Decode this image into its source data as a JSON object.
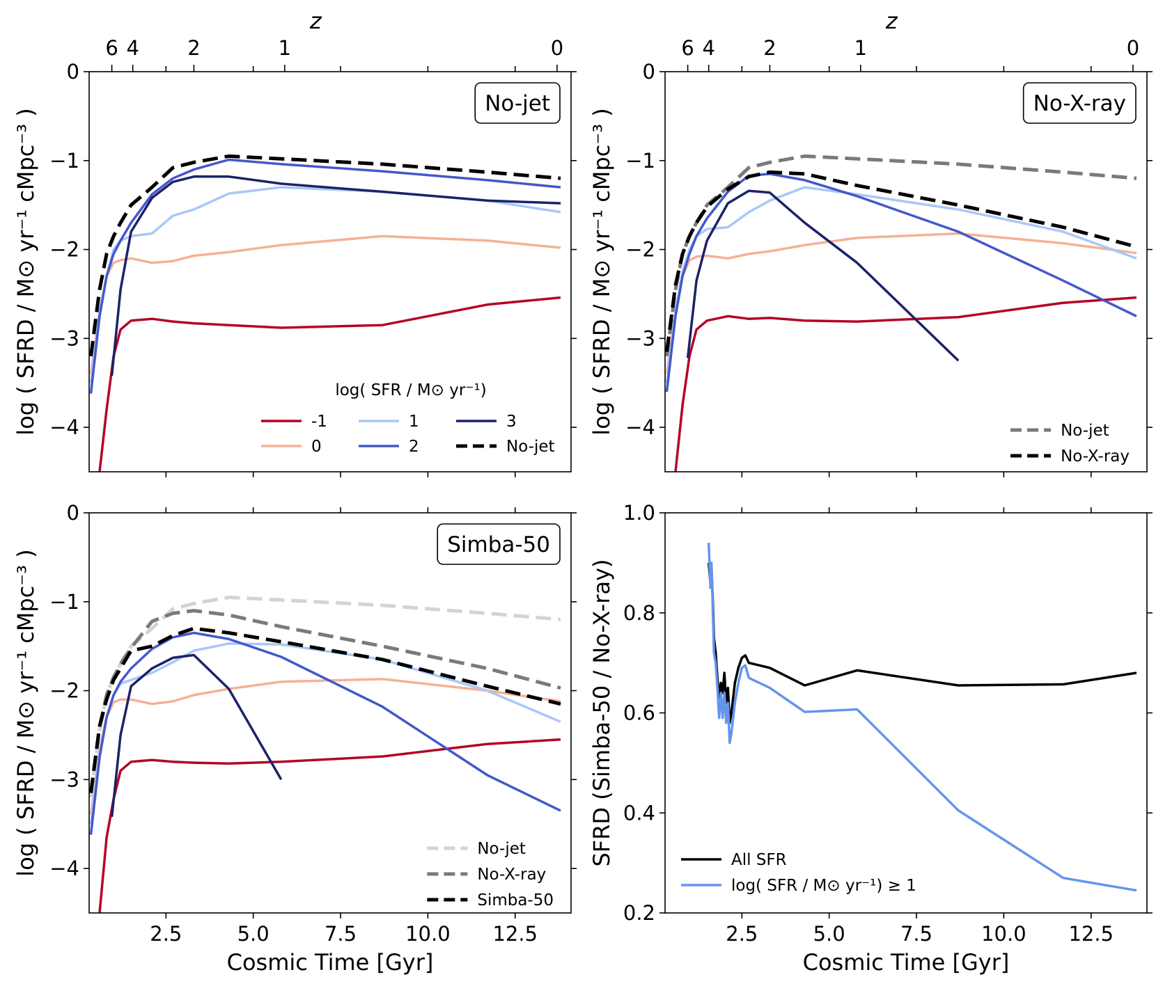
{
  "colors": {
    "m1": "#b40426",
    "p0": "#f5b194",
    "p1": "#a9c7f7",
    "p2": "#4358cb",
    "p3": "#1c2268",
    "black": "#000000",
    "gray": "#7a7a7a",
    "lightgray": "#d3d3d3",
    "ratio_sfr": "#6495ed"
  },
  "chart_data": [
    {
      "type": "line",
      "panel": "top-left",
      "box_label": "No-jet",
      "xlabel": "Cosmic Time [Gyr]",
      "ylabel": "log ( SFRD / M⊙ yr⁻¹ cMpc⁻³ )",
      "xlim": [
        0.3,
        14.1
      ],
      "ylim": [
        -4.5,
        0
      ],
      "yticks": [
        0,
        -1,
        -2,
        -3,
        -4
      ],
      "ytick_labels": [
        "0",
        "−1",
        "−2",
        "−3",
        "−4"
      ],
      "xticks": [
        2.5,
        5.0,
        7.5,
        10.0,
        12.5
      ],
      "top_axis": {
        "title": "z",
        "ticks": [
          6,
          4,
          2,
          1,
          0
        ],
        "tick_labels": [
          "6",
          "4",
          "2",
          "1",
          "0"
        ],
        "tick_times": [
          0.95,
          1.55,
          3.3,
          5.9,
          13.7
        ]
      },
      "legend": {
        "title": "log( SFR / M⊙ yr⁻¹)",
        "loc": "lower right",
        "ncol": 3
      },
      "series": [
        {
          "name": "-1",
          "color_key": "m1",
          "dash": "solid",
          "x": [
            0.6,
            0.8,
            1.0,
            1.2,
            1.5,
            2.1,
            2.7,
            3.3,
            4.3,
            5.8,
            8.7,
            11.7,
            13.8
          ],
          "y": [
            -4.5,
            -3.8,
            -3.2,
            -2.9,
            -2.8,
            -2.78,
            -2.81,
            -2.83,
            -2.85,
            -2.88,
            -2.85,
            -2.62,
            -2.54
          ]
        },
        {
          "name": "0",
          "color_key": "p0",
          "dash": "solid",
          "x": [
            0.35,
            0.6,
            0.8,
            1.0,
            1.2,
            1.5,
            2.1,
            2.7,
            3.3,
            4.3,
            5.8,
            8.7,
            11.7,
            13.8
          ],
          "y": [
            -3.4,
            -2.7,
            -2.3,
            -2.15,
            -2.12,
            -2.1,
            -2.15,
            -2.13,
            -2.07,
            -2.03,
            -1.95,
            -1.85,
            -1.9,
            -1.98
          ]
        },
        {
          "name": "1",
          "color_key": "p1",
          "dash": "solid",
          "x": [
            0.35,
            0.6,
            0.8,
            1.0,
            1.2,
            1.5,
            2.1,
            2.7,
            3.3,
            4.3,
            5.8,
            8.7,
            11.7,
            13.8
          ],
          "y": [
            -3.5,
            -2.7,
            -2.3,
            -2.0,
            -1.9,
            -1.85,
            -1.82,
            -1.62,
            -1.55,
            -1.37,
            -1.3,
            -1.35,
            -1.45,
            -1.58
          ]
        },
        {
          "name": "2",
          "color_key": "p2",
          "dash": "solid",
          "x": [
            0.35,
            0.6,
            0.8,
            1.0,
            1.2,
            1.5,
            2.1,
            2.7,
            3.3,
            4.3,
            5.8,
            8.7,
            11.7,
            13.8
          ],
          "y": [
            -3.62,
            -2.75,
            -2.3,
            -2.05,
            -1.9,
            -1.7,
            -1.38,
            -1.2,
            -1.1,
            -0.99,
            -1.04,
            -1.12,
            -1.22,
            -1.3
          ]
        },
        {
          "name": "3",
          "color_key": "p3",
          "dash": "solid",
          "x": [
            0.95,
            1.2,
            1.5,
            2.1,
            2.7,
            3.3,
            4.3,
            5.8,
            8.7,
            11.7,
            13.8
          ],
          "y": [
            -3.42,
            -2.45,
            -1.8,
            -1.42,
            -1.24,
            -1.18,
            -1.18,
            -1.26,
            -1.35,
            -1.45,
            -1.48
          ]
        },
        {
          "name": "No-jet",
          "color_key": "black",
          "dash": "dashed",
          "x": [
            0.35,
            0.6,
            0.8,
            1.0,
            1.2,
            1.5,
            2.1,
            2.7,
            3.3,
            4.3,
            5.8,
            8.7,
            11.7,
            13.8
          ],
          "y": [
            -3.2,
            -2.45,
            -2.05,
            -1.85,
            -1.7,
            -1.5,
            -1.3,
            -1.08,
            -1.02,
            -0.95,
            -0.98,
            -1.04,
            -1.13,
            -1.2
          ]
        }
      ]
    },
    {
      "type": "line",
      "panel": "top-right",
      "box_label": "No-X-ray",
      "xlabel": "Cosmic Time [Gyr]",
      "ylabel": "log ( SFRD / M⊙ yr⁻¹ cMpc⁻³ )",
      "xlim": [
        0.3,
        14.1
      ],
      "ylim": [
        -4.5,
        0
      ],
      "yticks": [
        0,
        -1,
        -2,
        -3,
        -4
      ],
      "ytick_labels": [
        "0",
        "−1",
        "−2",
        "−3",
        "−4"
      ],
      "xticks": [
        2.5,
        5.0,
        7.5,
        10.0,
        12.5
      ],
      "top_axis": {
        "title": "z",
        "ticks": [
          6,
          4,
          2,
          1,
          0
        ],
        "tick_labels": [
          "6",
          "4",
          "2",
          "1",
          "0"
        ],
        "tick_times": [
          0.95,
          1.55,
          3.3,
          5.9,
          13.7
        ]
      },
      "legend": {
        "loc": "lower right",
        "ncol": 1
      },
      "series": [
        {
          "name": "-1",
          "color_key": "m1",
          "dash": "solid",
          "legend": false,
          "x": [
            0.6,
            0.8,
            1.0,
            1.2,
            1.5,
            2.1,
            2.7,
            3.3,
            4.3,
            5.8,
            8.7,
            11.7,
            13.8
          ],
          "y": [
            -4.5,
            -3.75,
            -3.2,
            -2.9,
            -2.8,
            -2.75,
            -2.78,
            -2.77,
            -2.8,
            -2.81,
            -2.76,
            -2.6,
            -2.54
          ]
        },
        {
          "name": "0",
          "color_key": "p0",
          "dash": "solid",
          "legend": false,
          "x": [
            0.35,
            0.6,
            0.8,
            1.0,
            1.2,
            1.5,
            2.1,
            2.7,
            3.3,
            4.3,
            5.8,
            8.7,
            11.7,
            13.8
          ],
          "y": [
            -3.4,
            -2.7,
            -2.3,
            -2.12,
            -2.08,
            -2.07,
            -2.1,
            -2.05,
            -2.02,
            -1.95,
            -1.87,
            -1.82,
            -1.93,
            -2.04
          ]
        },
        {
          "name": "1",
          "color_key": "p1",
          "dash": "solid",
          "legend": false,
          "x": [
            0.35,
            0.6,
            0.8,
            1.0,
            1.2,
            1.5,
            2.1,
            2.7,
            3.3,
            4.3,
            5.8,
            8.7,
            11.7,
            13.8
          ],
          "y": [
            -3.5,
            -2.7,
            -2.25,
            -2.0,
            -1.85,
            -1.77,
            -1.75,
            -1.58,
            -1.45,
            -1.3,
            -1.38,
            -1.55,
            -1.8,
            -2.1
          ]
        },
        {
          "name": "2",
          "color_key": "p2",
          "dash": "solid",
          "legend": false,
          "x": [
            0.35,
            0.6,
            0.8,
            1.0,
            1.2,
            1.5,
            2.1,
            2.7,
            3.3,
            4.3,
            5.8,
            8.7,
            11.7,
            13.8
          ],
          "y": [
            -3.6,
            -2.75,
            -2.3,
            -2.05,
            -1.85,
            -1.65,
            -1.35,
            -1.17,
            -1.15,
            -1.22,
            -1.4,
            -1.8,
            -2.35,
            -2.75
          ]
        },
        {
          "name": "3",
          "color_key": "p3",
          "dash": "solid",
          "legend": false,
          "x": [
            0.95,
            1.2,
            1.5,
            2.1,
            2.7,
            3.3,
            4.3,
            5.8,
            8.7
          ],
          "y": [
            -3.22,
            -2.35,
            -1.9,
            -1.48,
            -1.34,
            -1.36,
            -1.7,
            -2.15,
            -3.25
          ]
        },
        {
          "name": "No-jet",
          "color_key": "gray",
          "dash": "dashed",
          "x": [
            0.35,
            0.6,
            0.8,
            1.0,
            1.2,
            1.5,
            2.1,
            2.7,
            3.3,
            4.3,
            5.8,
            8.7,
            11.7,
            13.8
          ],
          "y": [
            -3.2,
            -2.45,
            -2.05,
            -1.85,
            -1.7,
            -1.5,
            -1.3,
            -1.08,
            -1.02,
            -0.95,
            -0.98,
            -1.04,
            -1.13,
            -1.2
          ]
        },
        {
          "name": "No-X-ray",
          "color_key": "black",
          "dash": "dashed",
          "x": [
            0.35,
            0.6,
            0.8,
            1.0,
            1.2,
            1.5,
            2.1,
            2.7,
            3.3,
            4.3,
            5.8,
            8.7,
            11.7,
            13.8
          ],
          "y": [
            -3.15,
            -2.4,
            -2.05,
            -1.85,
            -1.7,
            -1.52,
            -1.32,
            -1.18,
            -1.13,
            -1.15,
            -1.28,
            -1.5,
            -1.75,
            -1.97
          ]
        }
      ]
    },
    {
      "type": "line",
      "panel": "bottom-left",
      "box_label": "Simba-50",
      "xlabel": "Cosmic Time [Gyr]",
      "ylabel": "log ( SFRD / M⊙ yr⁻¹ cMpc⁻³ )",
      "xlim": [
        0.3,
        14.1
      ],
      "ylim": [
        -4.5,
        0
      ],
      "yticks": [
        0,
        -1,
        -2,
        -3,
        -4
      ],
      "ytick_labels": [
        "0",
        "−1",
        "−2",
        "−3",
        "−4"
      ],
      "xticks": [
        2.5,
        5.0,
        7.5,
        10.0,
        12.5
      ],
      "xtick_labels": [
        "2.5",
        "5.0",
        "7.5",
        "10.0",
        "12.5"
      ],
      "legend": {
        "loc": "lower right",
        "ncol": 1
      },
      "series": [
        {
          "name": "-1",
          "color_key": "m1",
          "dash": "solid",
          "legend": false,
          "x": [
            0.6,
            0.8,
            1.0,
            1.2,
            1.5,
            2.1,
            2.7,
            3.3,
            4.3,
            5.8,
            8.7,
            11.7,
            13.8
          ],
          "y": [
            -4.5,
            -3.65,
            -3.22,
            -2.9,
            -2.8,
            -2.78,
            -2.8,
            -2.81,
            -2.82,
            -2.8,
            -2.74,
            -2.6,
            -2.55
          ]
        },
        {
          "name": "0",
          "color_key": "p0",
          "dash": "solid",
          "legend": false,
          "x": [
            0.35,
            0.6,
            0.8,
            1.0,
            1.2,
            1.5,
            2.1,
            2.7,
            3.3,
            4.3,
            5.8,
            8.7,
            11.7,
            13.8
          ],
          "y": [
            -3.4,
            -2.65,
            -2.3,
            -2.13,
            -2.1,
            -2.1,
            -2.15,
            -2.12,
            -2.05,
            -1.98,
            -1.9,
            -1.87,
            -2.0,
            -2.12
          ]
        },
        {
          "name": "1",
          "color_key": "p1",
          "dash": "solid",
          "legend": false,
          "x": [
            0.35,
            0.6,
            0.8,
            1.0,
            1.2,
            1.5,
            2.1,
            2.7,
            3.3,
            4.3,
            5.8,
            8.7,
            11.7,
            13.8
          ],
          "y": [
            -3.5,
            -2.7,
            -2.3,
            -2.05,
            -1.92,
            -1.88,
            -1.8,
            -1.68,
            -1.55,
            -1.47,
            -1.48,
            -1.65,
            -2.0,
            -2.35
          ]
        },
        {
          "name": "2",
          "color_key": "p2",
          "dash": "solid",
          "legend": false,
          "x": [
            0.35,
            0.6,
            0.8,
            1.0,
            1.2,
            1.5,
            2.1,
            2.7,
            3.3,
            4.3,
            5.8,
            8.7,
            11.7,
            13.8
          ],
          "y": [
            -3.62,
            -2.75,
            -2.3,
            -2.05,
            -1.9,
            -1.75,
            -1.53,
            -1.4,
            -1.35,
            -1.42,
            -1.62,
            -2.18,
            -2.95,
            -3.35
          ]
        },
        {
          "name": "3",
          "color_key": "p3",
          "dash": "solid",
          "legend": false,
          "x": [
            0.95,
            1.2,
            1.5,
            2.1,
            2.7,
            3.3,
            4.3,
            5.8
          ],
          "y": [
            -3.42,
            -2.5,
            -1.95,
            -1.75,
            -1.63,
            -1.6,
            -1.98,
            -3.0
          ]
        },
        {
          "name": "No-jet",
          "color_key": "lightgray",
          "dash": "dashed",
          "x": [
            0.35,
            0.6,
            0.8,
            1.0,
            1.2,
            1.5,
            2.1,
            2.7,
            3.3,
            4.3,
            5.8,
            8.7,
            11.7,
            13.8
          ],
          "y": [
            -3.2,
            -2.45,
            -2.05,
            -1.85,
            -1.7,
            -1.5,
            -1.3,
            -1.08,
            -1.02,
            -0.95,
            -0.98,
            -1.04,
            -1.13,
            -1.2
          ]
        },
        {
          "name": "No-X-ray",
          "color_key": "gray",
          "dash": "dashed",
          "x": [
            0.35,
            0.6,
            0.8,
            1.0,
            1.2,
            1.5,
            2.1,
            2.7,
            3.3,
            4.3,
            5.8,
            8.7,
            11.7,
            13.8
          ],
          "y": [
            -3.15,
            -2.4,
            -2.05,
            -1.85,
            -1.7,
            -1.52,
            -1.22,
            -1.13,
            -1.1,
            -1.15,
            -1.28,
            -1.5,
            -1.75,
            -1.97
          ]
        },
        {
          "name": "Simba-50",
          "color_key": "black",
          "dash": "dashed",
          "x": [
            0.35,
            0.6,
            0.8,
            1.0,
            1.2,
            1.5,
            2.1,
            2.7,
            3.3,
            4.3,
            5.8,
            8.7,
            11.7,
            13.8
          ],
          "y": [
            -3.15,
            -2.4,
            -2.1,
            -1.88,
            -1.75,
            -1.55,
            -1.5,
            -1.38,
            -1.3,
            -1.35,
            -1.45,
            -1.65,
            -1.95,
            -2.15
          ]
        }
      ]
    },
    {
      "type": "line",
      "panel": "bottom-right",
      "xlabel": "Cosmic Time [Gyr]",
      "ylabel": "SFRD (Simba-50 / No-X-ray)",
      "xlim": [
        0.3,
        14.1
      ],
      "ylim": [
        0.2,
        1.0
      ],
      "yticks": [
        1.0,
        0.8,
        0.6,
        0.4,
        0.2
      ],
      "ytick_labels": [
        "1.0",
        "0.8",
        "0.6",
        "0.4",
        "0.2"
      ],
      "xticks": [
        2.5,
        5.0,
        7.5,
        10.0,
        12.5
      ],
      "xtick_labels": [
        "2.5",
        "5.0",
        "7.5",
        "10.0",
        "12.5"
      ],
      "legend": {
        "loc": "lower left",
        "ncol": 1
      },
      "series": [
        {
          "name": "All SFR",
          "color_key": "black",
          "dash": "solid",
          "x": [
            1.55,
            1.6,
            1.63,
            1.67,
            1.7,
            1.75,
            1.8,
            1.85,
            1.9,
            1.95,
            2.0,
            2.05,
            2.1,
            2.15,
            2.2,
            2.3,
            2.4,
            2.5,
            2.6,
            2.7,
            3.3,
            4.3,
            5.8,
            8.7,
            11.7,
            13.8
          ],
          "y": [
            0.9,
            0.86,
            0.89,
            0.82,
            0.75,
            0.72,
            0.67,
            0.63,
            0.66,
            0.64,
            0.68,
            0.62,
            0.65,
            0.58,
            0.6,
            0.66,
            0.69,
            0.71,
            0.715,
            0.7,
            0.69,
            0.655,
            0.685,
            0.655,
            0.657,
            0.68
          ]
        },
        {
          "name": "log( SFR / M⊙ yr⁻¹) ≥ 1",
          "color_key": "ratio_sfr",
          "dash": "solid",
          "x": [
            1.55,
            1.6,
            1.63,
            1.67,
            1.7,
            1.75,
            1.8,
            1.85,
            1.9,
            1.95,
            2.0,
            2.05,
            2.1,
            2.15,
            2.2,
            2.3,
            2.4,
            2.5,
            2.6,
            2.7,
            3.3,
            4.3,
            5.8,
            8.7,
            11.7,
            13.8
          ],
          "y": [
            0.94,
            0.85,
            0.9,
            0.8,
            0.72,
            0.7,
            0.65,
            0.59,
            0.64,
            0.59,
            0.64,
            0.58,
            0.62,
            0.54,
            0.56,
            0.62,
            0.66,
            0.69,
            0.695,
            0.67,
            0.65,
            0.602,
            0.607,
            0.405,
            0.27,
            0.245
          ]
        }
      ]
    }
  ]
}
